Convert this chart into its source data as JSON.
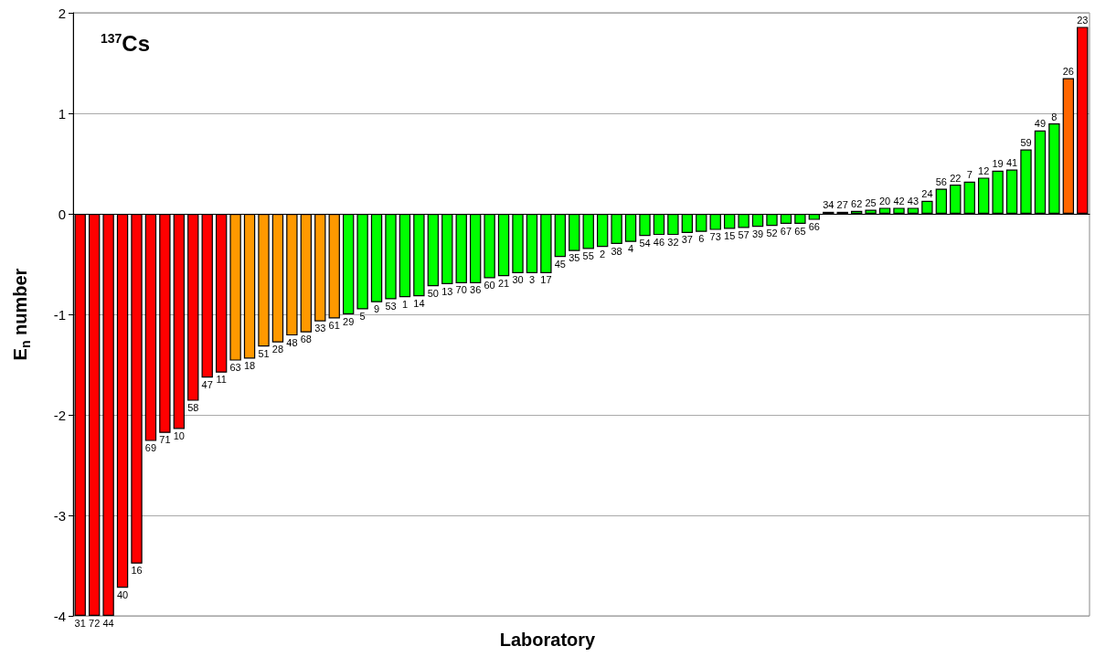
{
  "chart_data": {
    "type": "bar",
    "title": "$^{137}$Cs",
    "xlabel": "Laboratory",
    "ylabel": "E$_{n}$ number",
    "categories": [
      "31",
      "72",
      "44",
      "40",
      "16",
      "69",
      "71",
      "10",
      "58",
      "47",
      "11",
      "63",
      "18",
      "51",
      "28",
      "48",
      "68",
      "33",
      "61",
      "29",
      "5",
      "9",
      "53",
      "1",
      "14",
      "50",
      "13",
      "70",
      "36",
      "60",
      "21",
      "30",
      "3",
      "17",
      "45",
      "35",
      "55",
      "2",
      "38",
      "4",
      "54",
      "46",
      "32",
      "37",
      "6",
      "73",
      "15",
      "57",
      "39",
      "52",
      "67",
      "65",
      "66",
      "34",
      "27",
      "62",
      "25",
      "20",
      "42",
      "43",
      "24",
      "56",
      "22",
      "7",
      "12",
      "19",
      "41",
      "59",
      "49",
      "8",
      "26",
      "23"
    ],
    "values": [
      -4,
      -4,
      -4,
      -3.72,
      -3.48,
      -2.26,
      -2.18,
      -2.14,
      -1.86,
      -1.63,
      -1.58,
      -1.46,
      -1.44,
      -1.32,
      -1.28,
      -1.21,
      -1.18,
      -1.07,
      -1.04,
      -1.0,
      -0.95,
      -0.88,
      -0.85,
      -0.83,
      -0.82,
      -0.72,
      -0.7,
      -0.69,
      -0.69,
      -0.64,
      -0.62,
      -0.59,
      -0.59,
      -0.59,
      -0.43,
      -0.37,
      -0.35,
      -0.33,
      -0.3,
      -0.28,
      -0.22,
      -0.21,
      -0.21,
      -0.19,
      -0.18,
      -0.16,
      -0.15,
      -0.14,
      -0.13,
      -0.12,
      -0.1,
      -0.1,
      -0.06,
      0.02,
      0.02,
      0.03,
      0.04,
      0.06,
      0.06,
      0.06,
      0.13,
      0.25,
      0.29,
      0.32,
      0.36,
      0.43,
      0.44,
      0.64,
      0.83,
      0.9,
      1.35,
      1.86
    ],
    "colors": [
      "#ff0000",
      "#ff0000",
      "#ff0000",
      "#ff0000",
      "#ff0000",
      "#ff0000",
      "#ff0000",
      "#ff0000",
      "#ff0000",
      "#ff0000",
      "#ff0000",
      "#ff9900",
      "#ff9900",
      "#ff9900",
      "#ff9900",
      "#ff9900",
      "#ff9900",
      "#ff9900",
      "#ff9900",
      "#00ff00",
      "#00ff00",
      "#00ff00",
      "#00ff00",
      "#00ff00",
      "#00ff00",
      "#00ff00",
      "#00ff00",
      "#00ff00",
      "#00ff00",
      "#00ff00",
      "#00ff00",
      "#00ff00",
      "#00ff00",
      "#00ff00",
      "#00ff00",
      "#00ff00",
      "#00ff00",
      "#00ff00",
      "#00ff00",
      "#00ff00",
      "#00ff00",
      "#00ff00",
      "#00ff00",
      "#00ff00",
      "#00ff00",
      "#00ff00",
      "#00ff00",
      "#00ff00",
      "#00ff00",
      "#00ff00",
      "#00ff00",
      "#00ff00",
      "#00ff00",
      "#00ff00",
      "#00ff00",
      "#00ff00",
      "#00ff00",
      "#00ff00",
      "#00ff00",
      "#00ff00",
      "#00ff00",
      "#00ff00",
      "#00ff00",
      "#00ff00",
      "#00ff00",
      "#00ff00",
      "#00ff00",
      "#00ff00",
      "#00ff00",
      "#00ff00",
      "#ff6600",
      "#ff0000"
    ],
    "ylim": [
      -4,
      2
    ],
    "yticks": [
      -4,
      -3,
      -2,
      -1,
      0,
      1,
      2
    ],
    "grid": "y"
  }
}
